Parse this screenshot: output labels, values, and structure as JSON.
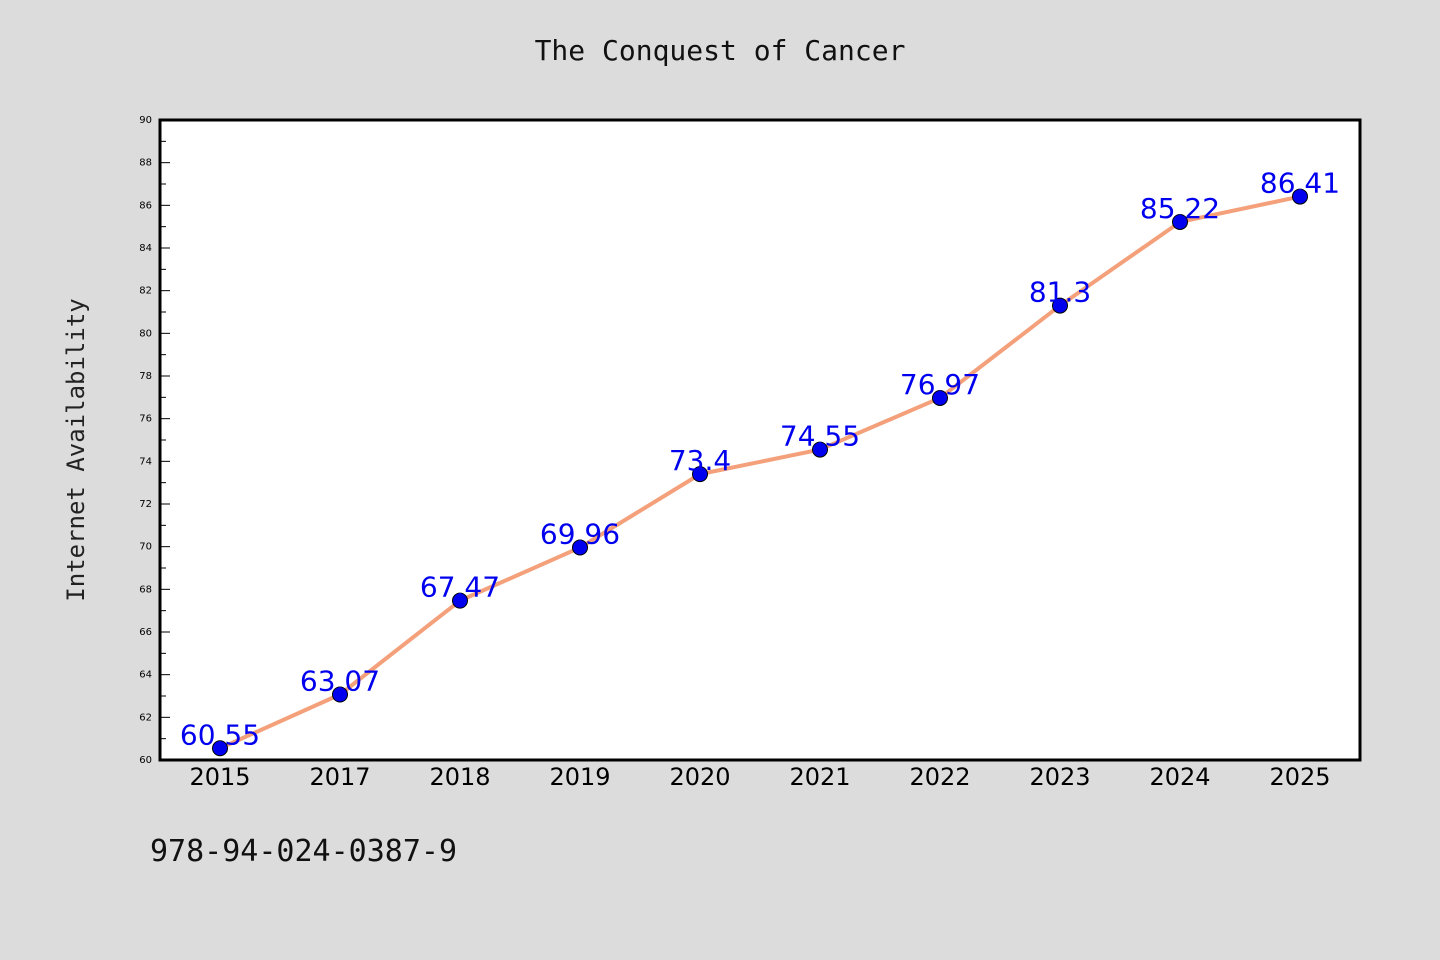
{
  "chart_data": {
    "type": "line",
    "title": "The Conquest of Cancer",
    "ylabel": "Internet Availability",
    "xlabel": "",
    "categories": [
      "2015",
      "2017",
      "2018",
      "2019",
      "2020",
      "2021",
      "2022",
      "2023",
      "2024",
      "2025"
    ],
    "series": [
      {
        "values": [
          60.55,
          63.07,
          67.47,
          69.96,
          73.4,
          74.55,
          76.97,
          81.3,
          85.22,
          86.41
        ],
        "labels": [
          "60.55",
          "63.07",
          "67.47",
          "69.96",
          "73.4",
          "74.55",
          "76.97",
          "81.3",
          "85.22",
          "86.41"
        ],
        "line_color": "#f4a07a",
        "marker_color": "#0000ee",
        "label_color": "#0000ee"
      }
    ],
    "ylim": [
      60,
      90
    ],
    "yticks": [
      "60",
      "62",
      "64",
      "66",
      "68",
      "70",
      "72",
      "74",
      "76",
      "78",
      "80",
      "82",
      "84",
      "86",
      "88",
      "90"
    ],
    "grid": false,
    "legend": "none"
  },
  "footer": {
    "isbn": "978-94-024-0387-9"
  },
  "colors": {
    "background": "#dcdcdc",
    "plot_background": "#ffffff",
    "axis": "#000000"
  }
}
